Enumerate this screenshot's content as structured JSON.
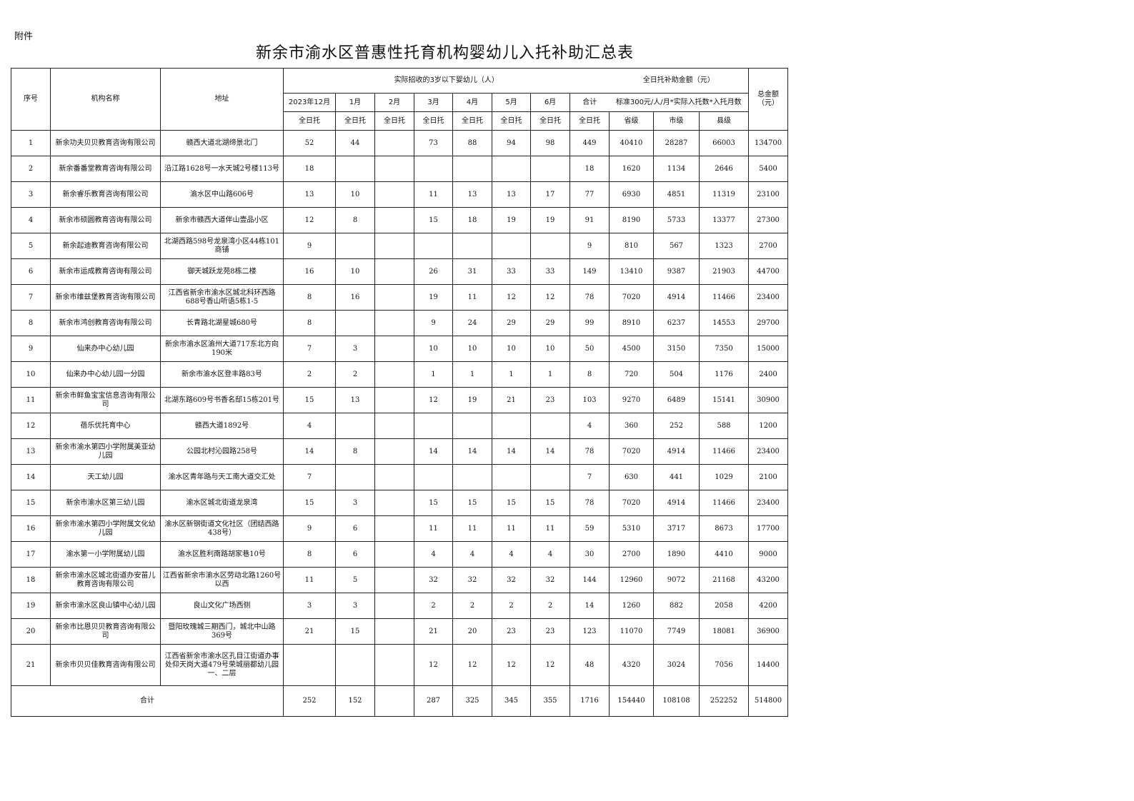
{
  "attachment_label": "附件",
  "title": "新余市渝水区普惠性托育机构婴幼儿入托补助汇总表",
  "header": {
    "seq": "序号",
    "name": "机构名称",
    "address": "地址",
    "enrolled_group": "实际招收的3岁以下婴幼儿（人）",
    "subsidy_group": "全日托补助金额（元）",
    "months": [
      "2023年12月",
      "1月",
      "2月",
      "3月",
      "4月",
      "5月",
      "6月",
      "合计"
    ],
    "standard": "标准300元/人/月*实际入托数*入托月数",
    "total_amount": "总金额（元）",
    "sub_labels": [
      "全日托",
      "全日托",
      "全日托",
      "全日托",
      "全日托",
      "全日托",
      "全日托",
      "全日托"
    ],
    "levels": [
      "省级",
      "市级",
      "县级"
    ]
  },
  "rows": [
    {
      "seq": "1",
      "name": "新余功夫贝贝教育咨询有限公司",
      "address": "赣西大道北湖缔景北门",
      "m": [
        "52",
        "44",
        "",
        "73",
        "88",
        "94",
        "98",
        "449"
      ],
      "prov": "40410",
      "city": "28287",
      "county": "66003",
      "total": "134700"
    },
    {
      "seq": "2",
      "name": "新余番番堂教育咨询有限公司",
      "address": "沿江路1628号一水天城2号楼113号",
      "m": [
        "18",
        "",
        "",
        "",
        "",
        "",
        "",
        "18"
      ],
      "prov": "1620",
      "city": "1134",
      "county": "2646",
      "total": "5400"
    },
    {
      "seq": "3",
      "name": "新余睿乐教育咨询有限公司",
      "address": "渝水区中山路606号",
      "m": [
        "13",
        "10",
        "",
        "11",
        "13",
        "13",
        "17",
        "77"
      ],
      "prov": "6930",
      "city": "4851",
      "county": "11319",
      "total": "23100"
    },
    {
      "seq": "4",
      "name": "新余市硕圆教育咨询有限公司",
      "address": "新余市赣西大道伴山壹品小区",
      "m": [
        "12",
        "8",
        "",
        "15",
        "18",
        "19",
        "19",
        "91"
      ],
      "prov": "8190",
      "city": "5733",
      "county": "13377",
      "total": "27300"
    },
    {
      "seq": "5",
      "name": "新余起迪教育咨询有限公司",
      "address": "北湖西路598号龙泉湾小区44栋101商铺",
      "m": [
        "9",
        "",
        "",
        "",
        "",
        "",
        "",
        "9"
      ],
      "prov": "810",
      "city": "567",
      "county": "1323",
      "total": "2700"
    },
    {
      "seq": "6",
      "name": "新余市运成教育咨询有限公司",
      "address": "御天城跃龙苑8栋二楼",
      "m": [
        "16",
        "10",
        "",
        "26",
        "31",
        "33",
        "33",
        "149"
      ],
      "prov": "13410",
      "city": "9387",
      "county": "21903",
      "total": "44700"
    },
    {
      "seq": "7",
      "name": "新余市维兹堡教育咨询有限公司",
      "address": "江西省新余市渝水区城北科环西路688号香山听语5栋1-5",
      "m": [
        "8",
        "16",
        "",
        "19",
        "11",
        "12",
        "12",
        "78"
      ],
      "prov": "7020",
      "city": "4914",
      "county": "11466",
      "total": "23400"
    },
    {
      "seq": "8",
      "name": "新余市鸿创教育咨询有限公司",
      "address": "长青路北湖星城680号",
      "m": [
        "8",
        "",
        "",
        "9",
        "24",
        "29",
        "29",
        "99"
      ],
      "prov": "8910",
      "city": "6237",
      "county": "14553",
      "total": "29700"
    },
    {
      "seq": "9",
      "name": "仙来办中心幼儿园",
      "address": "新余市渝水区渝州大道717东北方向190米",
      "m": [
        "7",
        "3",
        "",
        "10",
        "10",
        "10",
        "10",
        "50"
      ],
      "prov": "4500",
      "city": "3150",
      "county": "7350",
      "total": "15000"
    },
    {
      "seq": "10",
      "name": "仙来办中心幼儿园一分园",
      "address": "新余市渝水区登丰路83号",
      "m": [
        "2",
        "2",
        "",
        "1",
        "1",
        "1",
        "1",
        "8"
      ],
      "prov": "720",
      "city": "504",
      "county": "1176",
      "total": "2400"
    },
    {
      "seq": "11",
      "name": "新余市鲜鱼宝宝信息咨询有限公司",
      "address": "北湖东路609号书香名邸15栋201号",
      "m": [
        "15",
        "13",
        "",
        "12",
        "19",
        "21",
        "23",
        "103"
      ],
      "prov": "9270",
      "city": "6489",
      "county": "15141",
      "total": "30900"
    },
    {
      "seq": "12",
      "name": "蓓乐优托育中心",
      "address": "赣西大道1892号",
      "m": [
        "4",
        "",
        "",
        "",
        "",
        "",
        "",
        "4"
      ],
      "prov": "360",
      "city": "252",
      "county": "588",
      "total": "1200"
    },
    {
      "seq": "13",
      "name": "新余市渝水第四小学附属美亚幼儿园",
      "address": "公园北村沁园路258号",
      "m": [
        "14",
        "8",
        "",
        "14",
        "14",
        "14",
        "14",
        "78"
      ],
      "prov": "7020",
      "city": "4914",
      "county": "11466",
      "total": "23400"
    },
    {
      "seq": "14",
      "name": "天工幼儿园",
      "address": "渝水区青年路与天工南大道交汇处",
      "m": [
        "7",
        "",
        "",
        "",
        "",
        "",
        "",
        "7"
      ],
      "prov": "630",
      "city": "441",
      "county": "1029",
      "total": "2100"
    },
    {
      "seq": "15",
      "name": "新余市渝水区第三幼儿园",
      "address": "渝水区城北街道龙泉湾",
      "m": [
        "15",
        "3",
        "",
        "15",
        "15",
        "15",
        "15",
        "78"
      ],
      "prov": "7020",
      "city": "4914",
      "county": "11466",
      "total": "23400"
    },
    {
      "seq": "16",
      "name": "新余市渝水第四小学附属文化幼儿园",
      "address": "渝水区新钢街道文化社区（团结西路438号）",
      "m": [
        "9",
        "6",
        "",
        "11",
        "11",
        "11",
        "11",
        "59"
      ],
      "prov": "5310",
      "city": "3717",
      "county": "8673",
      "total": "17700"
    },
    {
      "seq": "17",
      "name": "渝水第一小学附属幼儿园",
      "address": "渝水区胜利南路胡家巷10号",
      "m": [
        "8",
        "6",
        "",
        "4",
        "4",
        "4",
        "4",
        "30"
      ],
      "prov": "2700",
      "city": "1890",
      "county": "4410",
      "total": "9000"
    },
    {
      "seq": "18",
      "name": "新余市渝水区城北街道办安苗儿教育咨询有限公司",
      "address": "江西省新余市渝水区劳动北路1260号以西",
      "m": [
        "11",
        "5",
        "",
        "32",
        "32",
        "32",
        "32",
        "144"
      ],
      "prov": "12960",
      "city": "9072",
      "county": "21168",
      "total": "43200"
    },
    {
      "seq": "19",
      "name": "新余市渝水区良山镇中心幼儿园",
      "address": "良山文化广场西侧",
      "m": [
        "3",
        "3",
        "",
        "2",
        "2",
        "2",
        "2",
        "14"
      ],
      "prov": "1260",
      "city": "882",
      "county": "2058",
      "total": "4200"
    },
    {
      "seq": "20",
      "name": "新余市比恩贝贝教育咨询有限公司",
      "address": "暨阳玫瑰城三期西门，城北中山路369号",
      "m": [
        "21",
        "15",
        "",
        "21",
        "20",
        "23",
        "23",
        "123"
      ],
      "prov": "11070",
      "city": "7749",
      "county": "18081",
      "total": "36900"
    },
    {
      "seq": "21",
      "name": "新余市贝贝佳教育咨询有限公司",
      "address": "江西省新余市渝水区孔目江街道办事处仰天岗大道479号荣城丽都幼儿园一、二层",
      "m": [
        "",
        "",
        "",
        "12",
        "12",
        "12",
        "12",
        "48"
      ],
      "prov": "4320",
      "city": "3024",
      "county": "7056",
      "total": "14400"
    }
  ],
  "totals": {
    "label": "合计",
    "m": [
      "252",
      "152",
      "",
      "287",
      "325",
      "345",
      "355",
      "1716"
    ],
    "prov": "154440",
    "city": "108108",
    "county": "252252",
    "total": "514800"
  }
}
